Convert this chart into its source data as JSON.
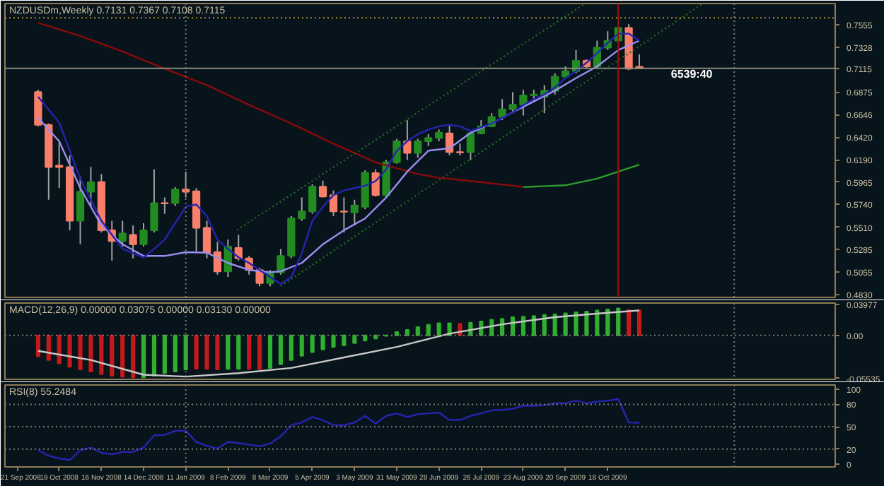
{
  "chart_data": [
    {
      "type": "candlestick",
      "title": "NZDUSDm,Weekly  0.7131 0.7367 0.7108 0.7115",
      "tick_labels": "y",
      "x": [
        "2008-10-05",
        "2008-10-12",
        "2008-10-19",
        "2008-10-26",
        "2008-11-02",
        "2008-11-09",
        "2008-11-16",
        "2008-11-23",
        "2008-11-30",
        "2008-12-07",
        "2008-12-14",
        "2008-12-21",
        "2008-12-28",
        "2009-01-04",
        "2009-01-11",
        "2009-01-18",
        "2009-01-25",
        "2009-02-01",
        "2009-02-08",
        "2009-02-15",
        "2009-02-22",
        "2009-03-01",
        "2009-03-08",
        "2009-03-15",
        "2009-03-22",
        "2009-03-29",
        "2009-04-05",
        "2009-04-12",
        "2009-04-19",
        "2009-04-26",
        "2009-05-03",
        "2009-05-10",
        "2009-05-17",
        "2009-05-24",
        "2009-05-31",
        "2009-06-07",
        "2009-06-14",
        "2009-06-21",
        "2009-06-28",
        "2009-07-05",
        "2009-07-12",
        "2009-07-19",
        "2009-07-26",
        "2009-08-02",
        "2009-08-09",
        "2009-08-16",
        "2009-08-23",
        "2009-08-30",
        "2009-09-06",
        "2009-09-13",
        "2009-09-20",
        "2009-09-27",
        "2009-10-04",
        "2009-10-11",
        "2009-10-18",
        "2009-10-25",
        "2009-11-01",
        "2009-11-08"
      ],
      "ohlc": [
        [
          0.6875,
          0.6898,
          0.6529,
          0.6544
        ],
        [
          0.6544,
          0.6558,
          0.5787,
          0.6118
        ],
        [
          0.6132,
          0.6378,
          0.5905,
          0.6118
        ],
        [
          0.6118,
          0.6236,
          0.5479,
          0.5574
        ],
        [
          0.5574,
          0.6023,
          0.5337,
          0.5867
        ],
        [
          0.5867,
          0.6118,
          0.5716,
          0.5966
        ],
        [
          0.5966,
          0.6047,
          0.5456,
          0.5479
        ],
        [
          0.5479,
          0.5574,
          0.5172,
          0.537
        ],
        [
          0.537,
          0.5574,
          0.5314,
          0.5446
        ],
        [
          0.5432,
          0.5527,
          0.5195,
          0.5337
        ],
        [
          0.5337,
          0.555,
          0.5314,
          0.5479
        ],
        [
          0.5479,
          0.6094,
          0.5456,
          0.5754
        ],
        [
          0.5754,
          0.581,
          0.5645,
          0.575
        ],
        [
          0.5754,
          0.5914,
          0.5725,
          0.5891
        ],
        [
          0.5891,
          0.6071,
          0.581,
          0.5867
        ],
        [
          0.5872,
          0.5905,
          0.5266,
          0.5503
        ],
        [
          0.5503,
          0.5574,
          0.5195,
          0.5252
        ],
        [
          0.5257,
          0.5361,
          0.503,
          0.5063
        ],
        [
          0.5063,
          0.5385,
          0.5006,
          0.5314
        ],
        [
          0.53,
          0.5432,
          0.5172,
          0.5195
        ],
        [
          0.5195,
          0.5219,
          0.503,
          0.5077
        ],
        [
          0.5077,
          0.5101,
          0.4912,
          0.4945
        ],
        [
          0.4945,
          0.5077,
          0.4912,
          0.5039
        ],
        [
          0.5053,
          0.529,
          0.503,
          0.5219
        ],
        [
          0.5219,
          0.5621,
          0.5195,
          0.5598
        ],
        [
          0.5598,
          0.581,
          0.5574,
          0.5669
        ],
        [
          0.5669,
          0.5943,
          0.5645,
          0.5919
        ],
        [
          0.5919,
          0.598,
          0.581,
          0.582
        ],
        [
          0.5834,
          0.5881,
          0.5621,
          0.5669
        ],
        [
          0.5669,
          0.581,
          0.5456,
          0.5665
        ],
        [
          0.5659,
          0.5787,
          0.5527,
          0.573
        ],
        [
          0.5716,
          0.6085,
          0.5692,
          0.6061
        ],
        [
          0.6056,
          0.6094,
          0.582,
          0.5834
        ],
        [
          0.5834,
          0.6189,
          0.581,
          0.6165
        ],
        [
          0.6165,
          0.6402,
          0.6151,
          0.6378
        ],
        [
          0.6378,
          0.6591,
          0.6189,
          0.626
        ],
        [
          0.626,
          0.6402,
          0.6212,
          0.6378
        ],
        [
          0.6378,
          0.6449,
          0.6331,
          0.6411
        ],
        [
          0.6411,
          0.6496,
          0.6378,
          0.6463
        ],
        [
          0.6458,
          0.6544,
          0.6236,
          0.6269
        ],
        [
          0.6269,
          0.6354,
          0.6236,
          0.6265
        ],
        [
          0.6269,
          0.6473,
          0.6189,
          0.6458
        ],
        [
          0.6458,
          0.6591,
          0.6449,
          0.6529
        ],
        [
          0.6529,
          0.6662,
          0.652,
          0.6624
        ],
        [
          0.6624,
          0.6804,
          0.6591,
          0.67
        ],
        [
          0.67,
          0.6875,
          0.6662,
          0.6747
        ],
        [
          0.6747,
          0.6898,
          0.6638,
          0.6842
        ],
        [
          0.6842,
          0.6898,
          0.678,
          0.6851
        ],
        [
          0.6827,
          0.6946,
          0.6662,
          0.6889
        ],
        [
          0.6889,
          0.7064,
          0.6851,
          0.7031
        ],
        [
          0.7031,
          0.7135,
          0.7017,
          0.7087
        ],
        [
          0.7087,
          0.73,
          0.7064,
          0.7192
        ],
        [
          0.7192,
          0.7206,
          0.7111,
          0.7135
        ],
        [
          0.7135,
          0.7395,
          0.7111,
          0.7324
        ],
        [
          0.7324,
          0.749,
          0.73,
          0.7395
        ],
        [
          0.7395,
          0.7537,
          0.7381,
          0.7523
        ],
        [
          0.7523,
          0.7561,
          0.7097,
          0.7111
        ],
        [
          0.7131,
          0.7257,
          0.7108,
          0.7115
        ]
      ],
      "colors": [
        "#fa7f6a",
        "#fa7f6a",
        "#fa7f6a",
        "#fa7f6a",
        "#228b22",
        "#228b22",
        "#fa7f6a",
        "#fa7f6a",
        "#228b22",
        "#fa7f6a",
        "#228b22",
        "#228b22",
        "#fa7f6a",
        "#228b22",
        "#fa7f6a",
        "#fa7f6a",
        "#fa7f6a",
        "#fa7f6a",
        "#228b22",
        "#fa7f6a",
        "#fa7f6a",
        "#fa7f6a",
        "#228b22",
        "#228b22",
        "#228b22",
        "#228b22",
        "#228b22",
        "#fa7f6a",
        "#fa7f6a",
        "#fa7f6a",
        "#228b22",
        "#228b22",
        "#fa7f6a",
        "#228b22",
        "#228b22",
        "#fa7f6a",
        "#228b22",
        "#228b22",
        "#228b22",
        "#fa7f6a",
        "#fa7f6a",
        "#228b22",
        "#228b22",
        "#228b22",
        "#228b22",
        "#228b22",
        "#228b22",
        "#228b22",
        "#228b22",
        "#228b22",
        "#228b22",
        "#228b22",
        "#fa7f6a",
        "#228b22",
        "#228b22",
        "#228b22",
        "#fa7f6a",
        "#fa7f6a"
      ],
      "series": [
        {
          "type": "line",
          "color": "#8b0a0a",
          "x": [
            "2008-10-05",
            "2008-11-02",
            "2008-11-30",
            "2008-12-28",
            "2009-01-25",
            "2009-02-22",
            "2009-03-22",
            "2009-04-19",
            "2009-05-17",
            "2009-06-14",
            "2009-06-28",
            "2009-07-19",
            "2009-08-16",
            "2009-08-23"
          ],
          "values": [
            0.7575,
            0.7442,
            0.7286,
            0.7111,
            0.6946,
            0.6747,
            0.6558,
            0.6354,
            0.6165,
            0.6047,
            0.6009,
            0.5976,
            0.5929,
            0.5915
          ]
        },
        {
          "type": "line",
          "color": "#2e9b2e",
          "x": [
            "2009-08-23",
            "2009-09-20",
            "2009-10-11",
            "2009-11-08"
          ],
          "values": [
            0.5915,
            0.5933,
            0.6,
            0.6142
          ]
        },
        {
          "type": "line",
          "color": "#9b8ff0",
          "x": [
            "2008-10-05",
            "2008-10-19",
            "2008-11-02",
            "2008-11-16",
            "2008-11-30",
            "2008-12-14",
            "2008-12-28",
            "2009-01-11",
            "2009-01-25",
            "2009-02-08",
            "2009-02-22",
            "2009-03-08",
            "2009-03-15",
            "2009-03-29",
            "2009-04-12",
            "2009-04-26",
            "2009-05-10",
            "2009-05-24",
            "2009-06-07",
            "2009-06-21",
            "2009-07-05",
            "2009-07-19",
            "2009-08-02",
            "2009-08-16",
            "2009-08-30",
            "2009-09-13",
            "2009-09-27",
            "2009-10-11",
            "2009-10-25",
            "2009-11-08"
          ],
          "values": [
            0.6614,
            0.6378,
            0.5905,
            0.5527,
            0.5337,
            0.5219,
            0.5219,
            0.5257,
            0.5252,
            0.5148,
            0.5077,
            0.5053,
            0.5063,
            0.5148,
            0.5337,
            0.5479,
            0.5598,
            0.581,
            0.6071,
            0.6283,
            0.6307,
            0.6463,
            0.6558,
            0.6671,
            0.678,
            0.6889,
            0.7017,
            0.7135,
            0.73,
            0.7395
          ]
        },
        {
          "type": "line",
          "color": "#2424b0",
          "x": [
            "2008-10-05",
            "2008-10-19",
            "2008-11-02",
            "2008-11-16",
            "2008-11-30",
            "2008-12-14",
            "2008-12-21",
            "2008-12-28",
            "2009-01-04",
            "2009-01-11",
            "2009-01-18",
            "2009-01-25",
            "2009-02-01",
            "2009-02-08",
            "2009-02-15",
            "2009-02-22",
            "2009-03-01",
            "2009-03-08",
            "2009-03-15",
            "2009-03-22",
            "2009-03-29",
            "2009-04-05",
            "2009-04-12",
            "2009-04-19",
            "2009-04-26",
            "2009-05-03",
            "2009-05-10",
            "2009-05-17",
            "2009-05-24",
            "2009-05-31",
            "2009-06-07",
            "2009-06-14",
            "2009-06-21",
            "2009-06-28",
            "2009-07-05",
            "2009-07-12",
            "2009-07-19",
            "2009-07-26",
            "2009-08-02",
            "2009-08-09",
            "2009-08-16",
            "2009-08-23",
            "2009-08-30",
            "2009-09-06",
            "2009-09-13",
            "2009-09-20",
            "2009-09-27",
            "2009-10-04",
            "2009-10-11",
            "2009-10-18",
            "2009-10-25",
            "2009-11-01",
            "2009-11-08"
          ],
          "values": [
            0.6827,
            0.6567,
            0.6,
            0.5574,
            0.529,
            0.5205,
            0.529,
            0.5385,
            0.555,
            0.5716,
            0.5739,
            0.5621,
            0.5385,
            0.529,
            0.5205,
            0.5148,
            0.5077,
            0.5006,
            0.4935,
            0.5006,
            0.5243,
            0.5574,
            0.5716,
            0.5834,
            0.5881,
            0.5905,
            0.5929,
            0.5976,
            0.6094,
            0.6283,
            0.6378,
            0.6449,
            0.6496,
            0.6529,
            0.6544,
            0.6529,
            0.6482,
            0.652,
            0.6558,
            0.6614,
            0.6671,
            0.6742,
            0.6804,
            0.6851,
            0.6922,
            0.7017,
            0.7087,
            0.7173,
            0.7267,
            0.7371,
            0.7466,
            0.7466,
            0.7395
          ]
        },
        {
          "type": "line",
          "color": "#1f6b1f",
          "line_style": "dotted",
          "x": [
            "2009-02-14",
            "2009-10-03"
          ],
          "values": [
            0.5482,
            0.7768
          ]
        },
        {
          "type": "line",
          "color": "#1f6b1f",
          "line_style": "dotted",
          "x": [
            "2009-03-15",
            "2009-12-20"
          ],
          "values": [
            0.4914,
            0.7768
          ]
        }
      ],
      "ref_lines": [
        {
          "axis": "y",
          "value": 0.7626,
          "color": "#b08a30",
          "line_style": "dotted"
        },
        {
          "axis": "y",
          "value": 0.7115,
          "color": "#8a8a80",
          "line_style": "solid"
        },
        {
          "axis": "x",
          "value": "2009-01-11",
          "color": "#7a7a70",
          "line_style": "dotted"
        },
        {
          "axis": "x",
          "value": "2010-01-10",
          "color": "#7a7a70",
          "line_style": "dotted"
        },
        {
          "axis": "x",
          "value": "2009-10-25",
          "color": "#a01010",
          "line_style": "solid"
        }
      ],
      "annotations": [
        {
          "text": "6539:40",
          "x": "2009-11-29",
          "y": 0.7058
        }
      ],
      "xlim": [
        "2008-09-13",
        "2010-03-18"
      ],
      "ylim": [
        0.48,
        0.777
      ],
      "yticks": [
        {
          "value": 0.483,
          "label": "0.4830"
        },
        {
          "value": 0.5055,
          "label": "0.5055"
        },
        {
          "value": 0.5285,
          "label": "0.5285"
        },
        {
          "value": 0.551,
          "label": "0.5510"
        },
        {
          "value": 0.574,
          "label": "0.5740"
        },
        {
          "value": 0.5965,
          "label": "0.5965"
        },
        {
          "value": 0.619,
          "label": "0.6190"
        },
        {
          "value": 0.642,
          "label": "0.6420"
        },
        {
          "value": 0.6646,
          "label": "0.6646"
        },
        {
          "value": 0.6875,
          "label": "0.6875"
        },
        {
          "value": 0.7115,
          "label": "0.7115"
        },
        {
          "value": 0.7328,
          "label": "0.7328"
        },
        {
          "value": 0.7555,
          "label": "0.7555"
        }
      ]
    },
    {
      "type": "bar",
      "title": "MACD(12,26,9) 0.00000 0.03075 0.00000 0.03130 0.00000",
      "tick_labels": "y",
      "x": [
        "2008-10-05",
        "2008-10-12",
        "2008-10-19",
        "2008-10-26",
        "2008-11-02",
        "2008-11-09",
        "2008-11-16",
        "2008-11-23",
        "2008-11-30",
        "2008-12-07",
        "2008-12-14",
        "2008-12-21",
        "2008-12-28",
        "2009-01-04",
        "2009-01-11",
        "2009-01-18",
        "2009-01-25",
        "2009-02-01",
        "2009-02-08",
        "2009-02-15",
        "2009-02-22",
        "2009-03-01",
        "2009-03-08",
        "2009-03-15",
        "2009-03-22",
        "2009-03-29",
        "2009-04-05",
        "2009-04-12",
        "2009-04-19",
        "2009-04-26",
        "2009-05-03",
        "2009-05-10",
        "2009-05-17",
        "2009-05-24",
        "2009-05-31",
        "2009-06-07",
        "2009-06-14",
        "2009-06-21",
        "2009-06-28",
        "2009-07-05",
        "2009-07-12",
        "2009-07-19",
        "2009-07-26",
        "2009-08-02",
        "2009-08-09",
        "2009-08-16",
        "2009-08-23",
        "2009-08-30",
        "2009-09-06",
        "2009-09-13",
        "2009-09-20",
        "2009-09-27",
        "2009-10-04",
        "2009-10-11",
        "2009-10-18",
        "2009-10-25",
        "2009-11-01",
        "2009-11-08"
      ],
      "values": [
        -0.027,
        -0.0317,
        -0.036,
        -0.0405,
        -0.0439,
        -0.0466,
        -0.05,
        -0.052,
        -0.053,
        -0.054,
        -0.054,
        -0.052,
        -0.0486,
        -0.0466,
        -0.0439,
        -0.0432,
        -0.0432,
        -0.0439,
        -0.0432,
        -0.0432,
        -0.0432,
        -0.0432,
        -0.0419,
        -0.037,
        -0.0317,
        -0.0263,
        -0.0216,
        -0.0182,
        -0.0149,
        -0.0128,
        -0.0101,
        -0.0068,
        -0.004,
        -0.0007,
        0.0043,
        0.0071,
        0.0107,
        0.0135,
        0.0156,
        0.0156,
        0.0149,
        0.0163,
        0.0178,
        0.0199,
        0.0213,
        0.0234,
        0.0241,
        0.0249,
        0.0263,
        0.027,
        0.0284,
        0.0298,
        0.0305,
        0.032,
        0.0334,
        0.0348,
        0.0327,
        0.032
      ],
      "colors": [
        "#c41a1a",
        "#c41a1a",
        "#c41a1a",
        "#c41a1a",
        "#c41a1a",
        "#c41a1a",
        "#c41a1a",
        "#c41a1a",
        "#c41a1a",
        "#c41a1a",
        "#2fb02f",
        "#2fb02f",
        "#2fb02f",
        "#2fb02f",
        "#2fb02f",
        "#c41a1a",
        "#c41a1a",
        "#c41a1a",
        "#2fb02f",
        "#2fb02f",
        "#c41a1a",
        "#c41a1a",
        "#2fb02f",
        "#2fb02f",
        "#2fb02f",
        "#2fb02f",
        "#2fb02f",
        "#2fb02f",
        "#2fb02f",
        "#2fb02f",
        "#2fb02f",
        "#2fb02f",
        "#2fb02f",
        "#2fb02f",
        "#2fb02f",
        "#2fb02f",
        "#2fb02f",
        "#2fb02f",
        "#2fb02f",
        "#2fb02f",
        "#c41a1a",
        "#2fb02f",
        "#2fb02f",
        "#2fb02f",
        "#2fb02f",
        "#2fb02f",
        "#2fb02f",
        "#2fb02f",
        "#2fb02f",
        "#2fb02f",
        "#2fb02f",
        "#2fb02f",
        "#2fb02f",
        "#2fb02f",
        "#2fb02f",
        "#2fb02f",
        "#c41a1a",
        "#c41a1a"
      ],
      "series": [
        {
          "type": "line",
          "color": "#c8c8c8",
          "x": [
            "2008-10-05",
            "2008-11-09",
            "2008-12-14",
            "2009-01-11",
            "2009-02-15",
            "2009-03-22",
            "2009-04-26",
            "2009-05-31",
            "2009-07-05",
            "2009-08-09",
            "2009-09-13",
            "2009-10-18",
            "2009-11-08"
          ],
          "values": [
            -0.02,
            -0.0317,
            -0.0506,
            -0.053,
            -0.0486,
            -0.0419,
            -0.0284,
            -0.0149,
            0.0021,
            0.0142,
            0.0234,
            0.029,
            0.032
          ]
        }
      ],
      "ref_lines": [
        {
          "axis": "y",
          "value": 0,
          "color": "#7a7a70",
          "line_style": "dotted"
        },
        {
          "axis": "x",
          "value": "2009-01-11",
          "color": "#7a7a70",
          "line_style": "dotted"
        },
        {
          "axis": "x",
          "value": "2010-01-10",
          "color": "#7a7a70",
          "line_style": "dotted"
        }
      ],
      "xlim": [
        "2008-09-13",
        "2010-03-18"
      ],
      "ylim": [
        -0.0565,
        0.0415
      ],
      "yticks": [
        {
          "value": 0.03977,
          "label": "0.03977"
        },
        {
          "value": 0,
          "label": "0.00"
        },
        {
          "value": -0.05535,
          "label": "-0.05535"
        }
      ]
    },
    {
      "type": "line",
      "title": "RSI(8) 55.2484",
      "color": "#2424b0",
      "x": [
        "2008-10-05",
        "2008-10-12",
        "2008-10-19",
        "2008-10-26",
        "2008-11-02",
        "2008-11-09",
        "2008-11-16",
        "2008-11-23",
        "2008-11-30",
        "2008-12-07",
        "2008-12-14",
        "2008-12-21",
        "2008-12-28",
        "2009-01-04",
        "2009-01-11",
        "2009-01-18",
        "2009-01-25",
        "2009-02-01",
        "2009-02-08",
        "2009-02-15",
        "2009-02-22",
        "2009-03-01",
        "2009-03-08",
        "2009-03-15",
        "2009-03-22",
        "2009-03-29",
        "2009-04-05",
        "2009-04-12",
        "2009-04-19",
        "2009-04-26",
        "2009-05-03",
        "2009-05-10",
        "2009-05-17",
        "2009-05-24",
        "2009-05-31",
        "2009-06-07",
        "2009-06-14",
        "2009-06-21",
        "2009-06-28",
        "2009-07-05",
        "2009-07-12",
        "2009-07-19",
        "2009-07-26",
        "2009-08-02",
        "2009-08-09",
        "2009-08-16",
        "2009-08-23",
        "2009-08-30",
        "2009-09-06",
        "2009-09-13",
        "2009-09-20",
        "2009-09-27",
        "2009-10-04",
        "2009-10-11",
        "2009-10-18",
        "2009-10-25",
        "2009-11-01",
        "2009-11-08"
      ],
      "values": [
        18.5,
        11,
        7.4,
        5.2,
        18.5,
        22,
        15,
        13,
        16,
        16,
        22,
        38.5,
        39,
        44.5,
        44.5,
        29.6,
        24.4,
        20.7,
        29.6,
        28,
        26,
        23.7,
        27.4,
        37,
        52,
        55.6,
        63,
        59,
        52,
        52,
        55.6,
        64.5,
        54,
        64.5,
        68,
        63,
        66.7,
        68,
        69,
        59,
        59,
        64.5,
        68,
        72,
        72.6,
        74,
        78,
        78,
        79,
        81.5,
        81.5,
        85,
        81.5,
        83.7,
        85,
        87,
        55.6,
        55.2484
      ],
      "ref_lines": [
        {
          "axis": "y",
          "value": 80,
          "color": "#7a7a70",
          "line_style": "dotted"
        },
        {
          "axis": "y",
          "value": 50,
          "color": "#7a7a70",
          "line_style": "dotted"
        },
        {
          "axis": "y",
          "value": 20,
          "color": "#7a7a70",
          "line_style": "dotted"
        },
        {
          "axis": "x",
          "value": "2009-01-11",
          "color": "#7a7a70",
          "line_style": "dotted"
        },
        {
          "axis": "x",
          "value": "2010-01-10",
          "color": "#7a7a70",
          "line_style": "dotted"
        }
      ],
      "xlim": [
        "2008-09-13",
        "2010-03-18"
      ],
      "ylim": [
        -4,
        106
      ],
      "yticks": [
        0,
        20,
        50,
        80,
        100
      ],
      "xticks": [
        {
          "value": "2008-09-21",
          "label": "21 Sep 2008"
        },
        {
          "value": "2008-10-19",
          "label": "19 Oct 2008"
        },
        {
          "value": "2008-11-16",
          "label": "16 Nov 2008"
        },
        {
          "value": "2008-12-14",
          "label": "14 Dec 2008"
        },
        {
          "value": "2009-01-11",
          "label": "11 Jan 2009"
        },
        {
          "value": "2009-02-08",
          "label": "8 Feb 2009"
        },
        {
          "value": "2009-03-08",
          "label": "8 Mar 2009"
        },
        {
          "value": "2009-04-05",
          "label": "5 Apr 2009"
        },
        {
          "value": "2009-05-03",
          "label": "3 May 2009"
        },
        {
          "value": "2009-05-31",
          "label": "31 May 2009"
        },
        {
          "value": "2009-06-28",
          "label": "28 Jun 2009"
        },
        {
          "value": "2009-07-26",
          "label": "26 Jul 2009"
        },
        {
          "value": "2009-08-23",
          "label": "23 Aug 2009"
        },
        {
          "value": "2009-09-20",
          "label": "20 Sep 2009"
        },
        {
          "value": "2009-10-18",
          "label": "18 Oct 2009"
        }
      ]
    }
  ]
}
